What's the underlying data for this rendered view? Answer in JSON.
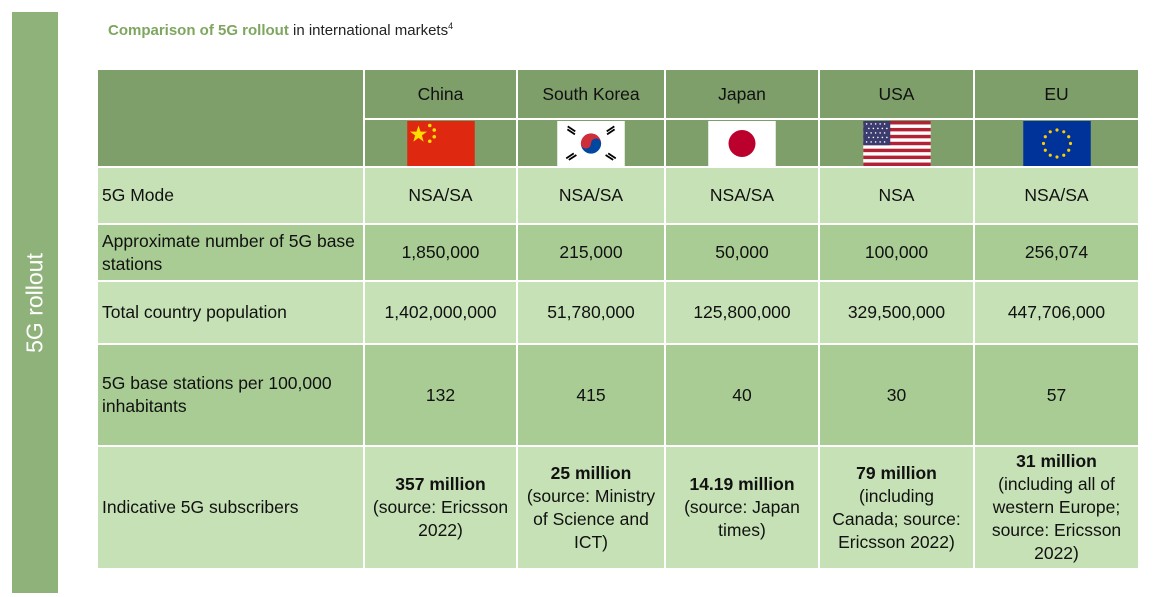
{
  "sidebar": {
    "label": "5G rollout"
  },
  "header": {
    "title_bold": "Comparison of 5G rollout",
    "title_rest": " in international markets",
    "footnote": "4"
  },
  "table": {
    "countries": [
      "China",
      "South Korea",
      "Japan",
      "USA",
      "EU"
    ],
    "flag_icons": [
      "china-flag-icon",
      "south-korea-flag-icon",
      "japan-flag-icon",
      "usa-flag-icon",
      "eu-flag-icon"
    ],
    "rows": [
      {
        "label": "5G Mode",
        "cells": [
          "NSA/SA",
          "NSA/SA",
          "NSA/SA",
          "NSA",
          "NSA/SA"
        ]
      },
      {
        "label": "Approximate number of 5G base stations",
        "cells": [
          "1,850,000",
          "215,000",
          "50,000",
          "100,000",
          "256,074"
        ]
      },
      {
        "label": "Total country population",
        "cells": [
          "1,402,000,000",
          "51,780,000",
          "125,800,000",
          "329,500,000",
          "447,706,000"
        ]
      },
      {
        "label": "5G base stations per 100,000 inhabitants",
        "cells": [
          "132",
          "415",
          "40",
          "30",
          "57"
        ]
      }
    ],
    "subscribers": {
      "label": "Indicative 5G subscribers",
      "bold": [
        "357 million",
        "25 million",
        "14.19 million",
        "79 million",
        "31 million"
      ],
      "notes": [
        "(source: Ericsson 2022)",
        "(source: Ministry of Science and ICT)",
        "(source: Japan times)",
        "(including Canada; source: Ericsson 2022)",
        "(including all of western Europe; source: Ericsson 2022)"
      ]
    }
  },
  "colors": {
    "sidebar": "#8fb27b",
    "title_accent": "#7ea65f",
    "header": "#7e9e6a",
    "row_light": "#c5e1b5",
    "row_dark": "#a8cc93"
  }
}
